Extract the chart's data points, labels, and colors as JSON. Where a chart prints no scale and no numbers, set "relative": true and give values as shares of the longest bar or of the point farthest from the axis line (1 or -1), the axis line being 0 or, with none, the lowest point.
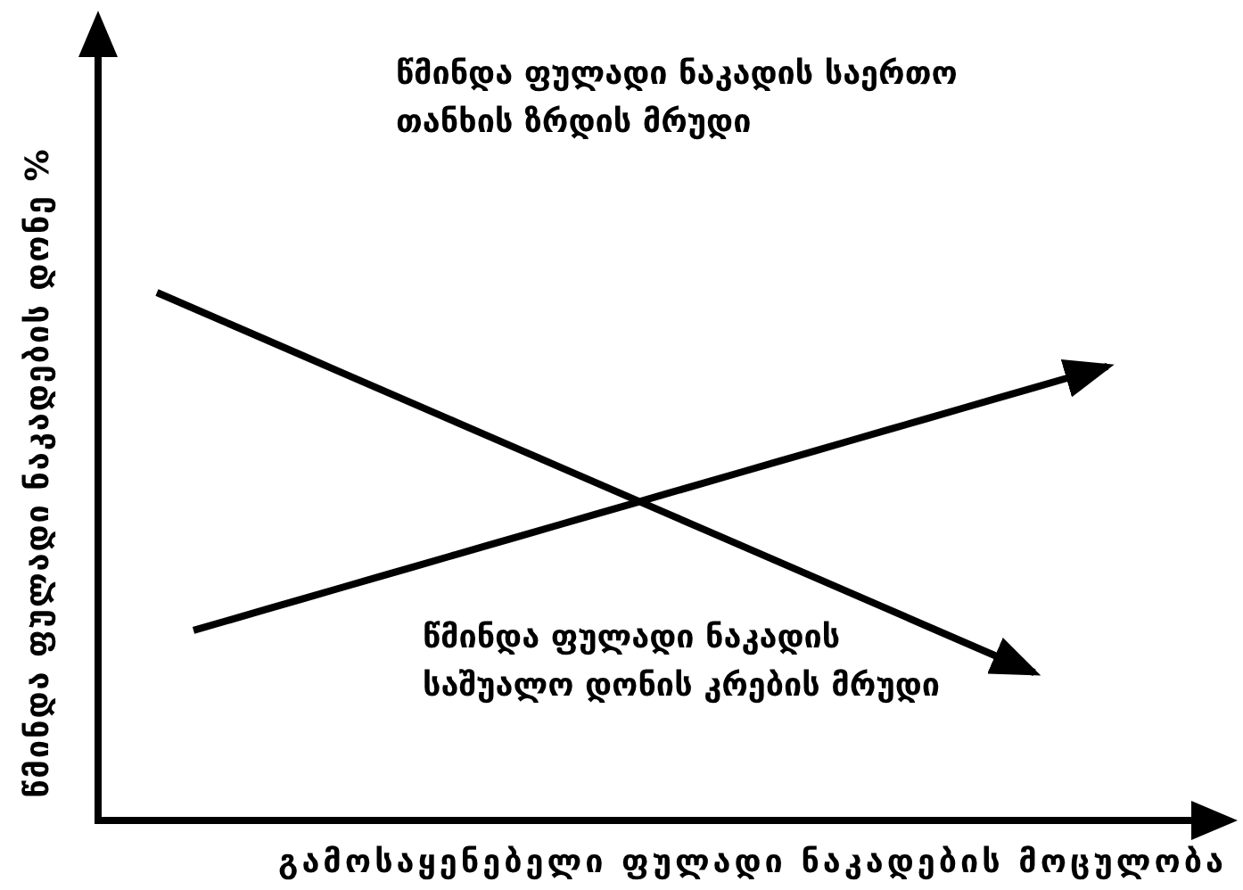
{
  "chart_data": {
    "type": "line",
    "relative": true,
    "xlabel": "გამოსაყენებელი ფულადი ნაკადების მოცულობა",
    "ylabel": "წმინდა ფულადი ნაკადების დონე %",
    "annotations": [
      "წმინდა ფულადი ნაკადის საერთო თანხის ზრდის მრუდი"
    ],
    "categories": [
      null,
      null,
      null,
      null,
      null,
      null,
      null,
      null,
      null,
      null,
      null,
      null,
      null,
      null,
      null,
      null,
      null,
      null,
      null,
      null,
      null,
      null,
      null,
      null,
      null,
      null,
      null
    ],
    "series": [
      {
        "color": "#000000",
        "values": [
          null,
          0.36,
          0.38,
          0.4,
          0.42,
          0.44,
          0.46,
          0.48,
          0.5,
          0.52,
          0.54,
          0.56,
          0.58,
          0.6,
          0.62,
          0.64,
          0.66,
          0.68,
          0.7,
          0.72,
          0.74,
          0.76,
          0.78,
          0.8,
          0.82,
          0.84,
          0.86
        ]
      },
      {
        "name": "წმინდა ფულადი ნაკადის საშუალო დონის კრების მრუდი",
        "color": "#000000",
        "values": [
          1,
          0.97,
          0.94,
          0.91,
          0.88,
          0.85,
          0.82,
          0.79,
          0.76,
          0.73,
          0.7,
          0.67,
          0.64,
          0.61,
          0.58,
          0.55,
          0.52,
          0.49,
          0.46,
          0.43,
          0.4,
          0.37,
          0.34,
          0.31,
          0.28,
          null,
          null
        ]
      }
    ]
  }
}
